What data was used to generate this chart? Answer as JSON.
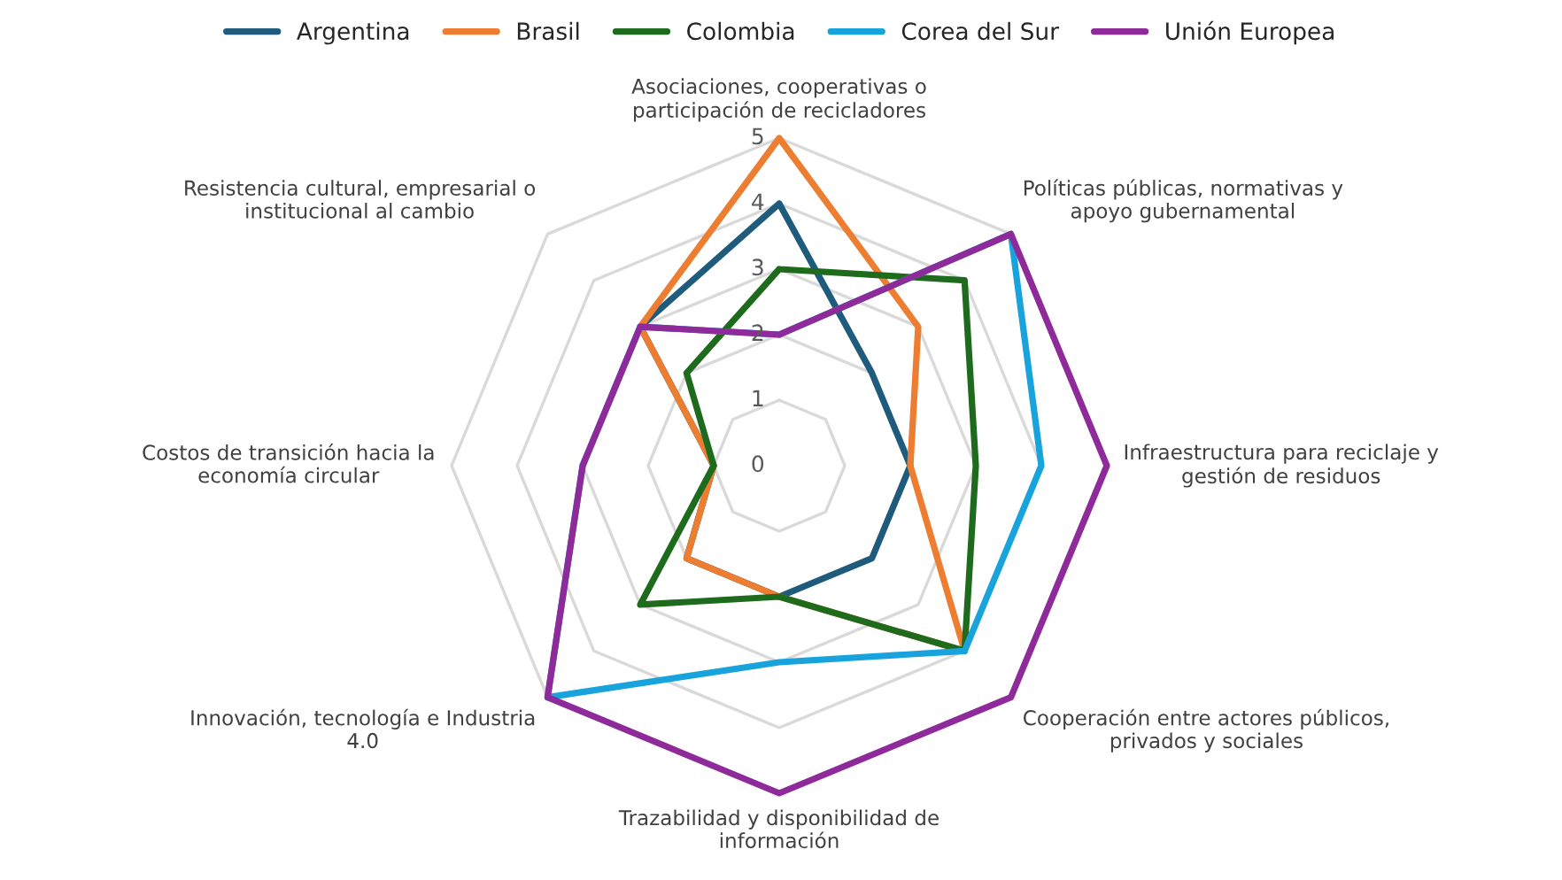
{
  "chart_data": {
    "type": "radar",
    "categories": [
      "Asociaciones, cooperativas o participación de recicladores",
      "Políticas públicas, normativas y apoyo gubernamental",
      "Infraestructura para reciclaje y gestión de residuos",
      "Cooperación entre actores públicos, privados y sociales",
      "Trazabilidad y disponibilidad de información",
      "Innovación, tecnología e Industria 4.0",
      "Costos de transición hacia la economía circular",
      "Resistencia cultural, empresarial o institucional al cambio"
    ],
    "series": [
      {
        "name": "Argentina",
        "color": "#1f5b7c",
        "values": [
          4,
          2,
          2,
          2,
          2,
          2,
          1,
          3
        ]
      },
      {
        "name": "Brasil",
        "color": "#ed7d31",
        "values": [
          5,
          3,
          2,
          4,
          2,
          2,
          1,
          3
        ]
      },
      {
        "name": "Colombia",
        "color": "#1e6b1e",
        "values": [
          3,
          4,
          3,
          4,
          2,
          3,
          1,
          2
        ]
      },
      {
        "name": "Corea del Sur",
        "color": "#18a3dc",
        "values": [
          2,
          5,
          4,
          4,
          3,
          5,
          3,
          3
        ]
      },
      {
        "name": "Unión Europea",
        "color": "#8e2a9a",
        "values": [
          2,
          5,
          5,
          5,
          5,
          5,
          3,
          3
        ]
      }
    ],
    "ylim": [
      0,
      5
    ],
    "yticks": [
      0,
      1,
      2,
      3,
      4,
      5
    ],
    "grid": true,
    "legend": "top",
    "marker": "none",
    "line_style": "solid"
  }
}
